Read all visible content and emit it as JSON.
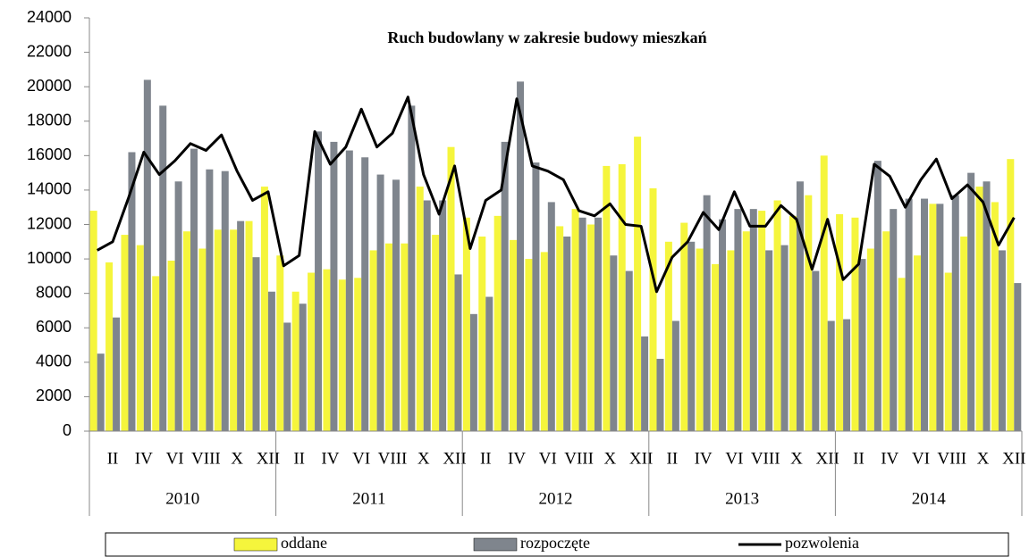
{
  "chart_data": {
    "type": "bar_line",
    "title": "Ruch budowlany w zakresie budowy mieszkań",
    "categories": [
      null,
      "II",
      null,
      "IV",
      null,
      "VI",
      null,
      "VIII",
      null,
      "X",
      null,
      "XII",
      null,
      "II",
      null,
      "IV",
      null,
      "VI",
      null,
      "VIII",
      null,
      "X",
      null,
      "XII",
      null,
      "II",
      null,
      "IV",
      null,
      "VI",
      null,
      "VIII",
      null,
      "X",
      null,
      "XII",
      null,
      "II",
      null,
      "IV",
      null,
      "VI",
      null,
      "VIII",
      null,
      "X",
      null,
      "XII",
      null,
      "II",
      null,
      "IV",
      null,
      "VI",
      null,
      "VIII",
      null,
      "X",
      null,
      "XII"
    ],
    "groups": [
      "2010",
      "2011",
      "2012",
      "2013",
      "2014"
    ],
    "series": [
      {
        "name": "oddane",
        "kind": "bar",
        "color": "#f5f53c",
        "values": [
          12800,
          9800,
          11400,
          10800,
          9000,
          9900,
          11600,
          10600,
          11700,
          11700,
          12200,
          14200,
          10200,
          8100,
          9200,
          9400,
          8800,
          8900,
          10500,
          10900,
          10900,
          14200,
          11400,
          16500,
          12400,
          11300,
          12500,
          11100,
          10000,
          10400,
          11900,
          12900,
          12000,
          15400,
          15500,
          17100,
          14100,
          11000,
          12100,
          10600,
          9700,
          10500,
          11600,
          12800,
          13400,
          12500,
          13700,
          16000,
          12600,
          12400,
          10600,
          11600,
          8900,
          10200,
          13200,
          9200,
          11300,
          14200,
          13300,
          15800
        ]
      },
      {
        "name": "rozpoczęte",
        "kind": "bar",
        "color": "#7f858d",
        "values": [
          4500,
          6600,
          16200,
          20400,
          18900,
          14500,
          16400,
          15200,
          15100,
          12200,
          10100,
          8100,
          6300,
          7400,
          17400,
          16800,
          16300,
          15900,
          14900,
          14600,
          18900,
          13400,
          13400,
          9100,
          6800,
          7800,
          16800,
          20300,
          15600,
          13300,
          11300,
          12400,
          12400,
          10200,
          9300,
          5500,
          4200,
          6400,
          11000,
          13700,
          12300,
          12900,
          12900,
          10500,
          10800,
          14500,
          9300,
          6400,
          6500,
          10000,
          15700,
          12900,
          13500,
          13500,
          13200,
          13700,
          15000,
          14500,
          10500,
          8600
        ]
      },
      {
        "name": "pozwolenia",
        "kind": "line",
        "color": "#000000",
        "values": [
          10500,
          11000,
          13500,
          16200,
          14900,
          15700,
          16700,
          16300,
          17200,
          15100,
          13400,
          13900,
          9600,
          10200,
          17400,
          15500,
          16500,
          18700,
          16500,
          17300,
          19400,
          14900,
          12600,
          15400,
          10600,
          13400,
          14000,
          19300,
          15400,
          15100,
          14600,
          12800,
          12500,
          13200,
          12000,
          11900,
          8100,
          10100,
          11000,
          12700,
          11700,
          13900,
          11900,
          11900,
          13100,
          12300,
          9400,
          12300,
          8800,
          9700,
          15500,
          14800,
          13000,
          14600,
          15800,
          13500,
          14300,
          13300,
          10800,
          12400
        ]
      }
    ],
    "ylim": [
      0,
      24000
    ],
    "yticks": [
      0,
      2000,
      4000,
      6000,
      8000,
      10000,
      12000,
      14000,
      16000,
      18000,
      20000,
      22000,
      24000
    ],
    "legend": "bottom"
  }
}
